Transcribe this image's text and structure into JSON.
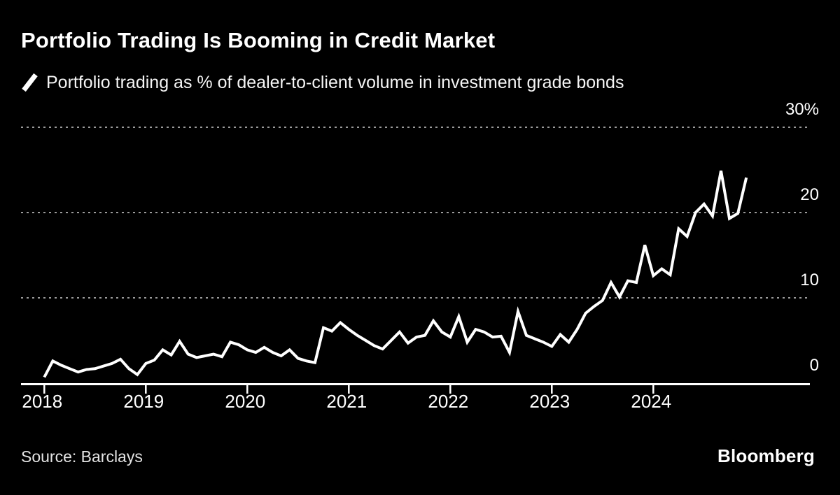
{
  "title": "Portfolio Trading Is Booming in Credit Market",
  "legend": {
    "key_icon": "line-series-key-icon",
    "label": "Portfolio trading as % of dealer-to-client volume in investment grade bonds"
  },
  "footer": {
    "source": "Source: Barclays",
    "brand": "Bloomberg"
  },
  "colors": {
    "background": "#000000",
    "line": "#ffffff",
    "grid": "#9b9b9b",
    "axis": "#ffffff",
    "text": "#ffffff",
    "source_text": "#e3e3e3"
  },
  "chart_data": {
    "type": "line",
    "title": "Portfolio Trading Is Booming in Credit Market",
    "xlabel": "",
    "ylabel": "% of dealer-to-client volume",
    "grid": "horizontal-dashed",
    "legend_position": "top-left-above-chart",
    "ylim": [
      0,
      31.5
    ],
    "x_range": [
      "2018-01",
      "2024-12"
    ],
    "x_tick_labels": [
      "2018",
      "2019",
      "2020",
      "2021",
      "2022",
      "2023",
      "2024"
    ],
    "y_ticks": [
      {
        "value": 30,
        "label": "30%"
      },
      {
        "value": 20,
        "label": "20"
      },
      {
        "value": 10,
        "label": "10"
      },
      {
        "value": 0,
        "label": "0"
      }
    ],
    "series": [
      {
        "name": "Portfolio trading as % of dealer-to-client volume in investment grade bonds",
        "color": "#ffffff",
        "x_start": "2018-01",
        "frequency": "monthly",
        "values": [
          0.7,
          2.6,
          2.1,
          1.7,
          1.3,
          1.6,
          1.7,
          2.0,
          2.3,
          2.8,
          1.7,
          1.0,
          2.3,
          2.7,
          3.9,
          3.3,
          4.9,
          3.4,
          3.0,
          3.2,
          3.4,
          3.1,
          4.8,
          4.5,
          3.9,
          3.6,
          4.2,
          3.6,
          3.2,
          3.9,
          2.9,
          2.6,
          2.4,
          6.5,
          6.1,
          7.1,
          6.3,
          5.6,
          5.0,
          4.4,
          4.0,
          5.0,
          6.0,
          4.7,
          5.4,
          5.6,
          7.3,
          6.0,
          5.4,
          7.8,
          4.8,
          6.3,
          6.0,
          5.4,
          5.5,
          3.6,
          8.4,
          5.6,
          5.2,
          4.8,
          4.3,
          5.7,
          4.8,
          6.3,
          8.2,
          9.0,
          9.7,
          11.8,
          10.1,
          12.0,
          11.8,
          16.2,
          12.6,
          13.4,
          12.7,
          18.1,
          17.2,
          20.0,
          21.0,
          19.6,
          24.9,
          19.3,
          19.9,
          24.1
        ]
      }
    ]
  }
}
